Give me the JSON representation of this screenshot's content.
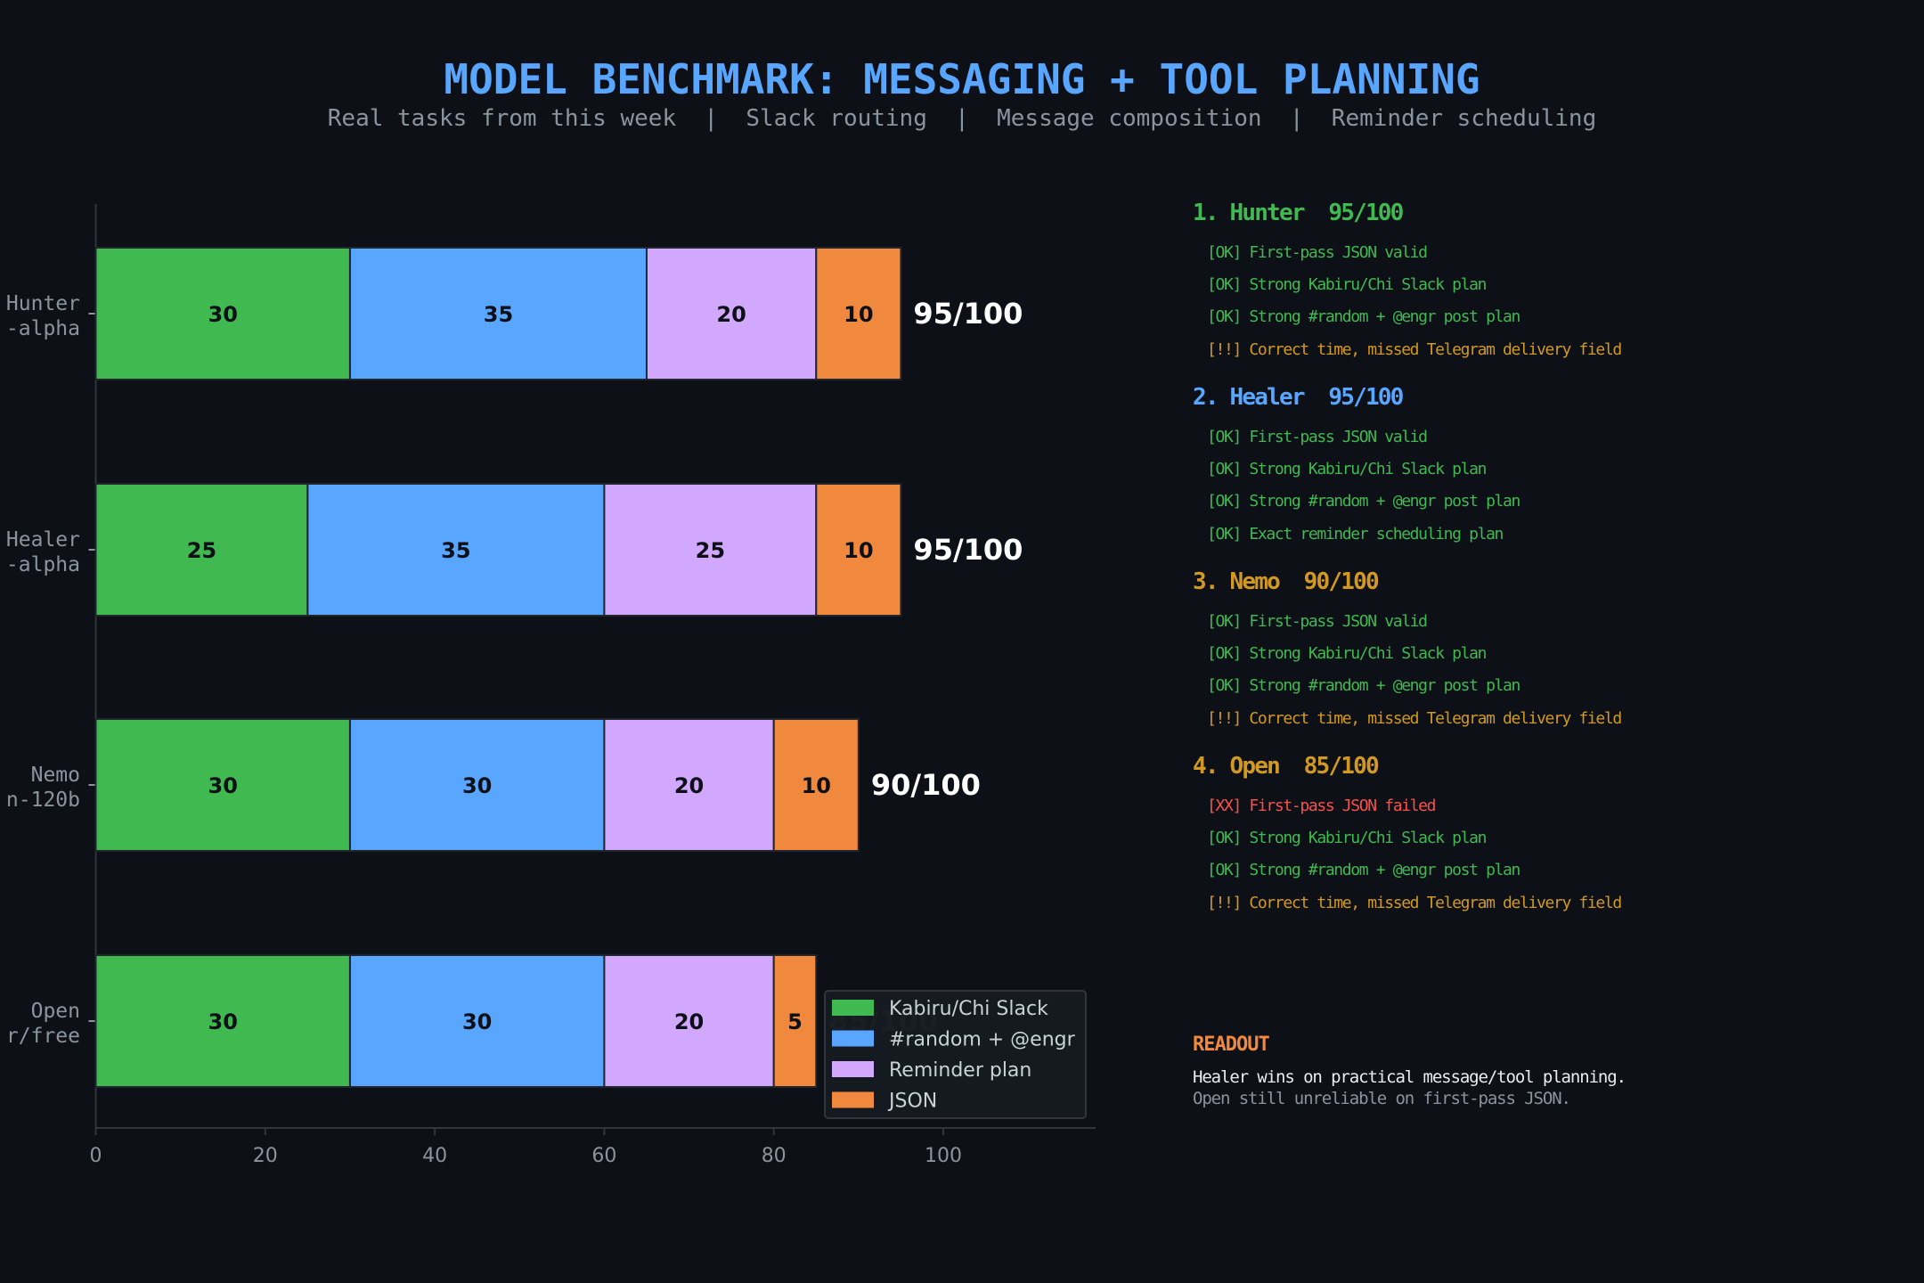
{
  "title": "MODEL BENCHMARK: MESSAGING + TOOL PLANNING",
  "subtitle": "Real tasks from this week  |  Slack routing  |  Message composition  |  Reminder scheduling",
  "colors": {
    "background": "#0d1017",
    "title": "#58a6ff",
    "ok": "#3fb950",
    "warn": "#d29922",
    "fail": "#f85149"
  },
  "chart_data": {
    "type": "bar",
    "orientation": "horizontal",
    "stacked": true,
    "categories": [
      [
        "Hunter",
        "-alpha"
      ],
      [
        "Healer",
        "-alpha"
      ],
      [
        "Nemo",
        "n-120b"
      ],
      [
        "Open",
        "r/free"
      ]
    ],
    "series": [
      {
        "name": "Kabiru/Chi Slack",
        "color": "#3fb950",
        "values": [
          30,
          25,
          30,
          30
        ]
      },
      {
        "name": "#random + @engr",
        "color": "#58a6ff",
        "values": [
          35,
          35,
          30,
          30
        ]
      },
      {
        "name": "Reminder plan",
        "color": "#d2a8ff",
        "values": [
          20,
          25,
          20,
          20
        ]
      },
      {
        "name": "JSON",
        "color": "#f0883e",
        "values": [
          10,
          10,
          10,
          5
        ]
      }
    ],
    "totals": [
      "95/100",
      "95/100",
      "90/100",
      "85/100"
    ],
    "xlim": [
      0,
      118
    ],
    "xticks": [
      0,
      20,
      40,
      60,
      80,
      100
    ],
    "grid": false,
    "legend": "bottom-right"
  },
  "panel": [
    {
      "heading": "1. Hunter  95/100",
      "color": "#3fb950",
      "items": [
        {
          "text": "[OK] First-pass JSON valid",
          "status": "ok"
        },
        {
          "text": "[OK] Strong Kabiru/Chi Slack plan",
          "status": "ok"
        },
        {
          "text": "[OK] Strong #random + @engr post plan",
          "status": "ok"
        },
        {
          "text": "[!!] Correct time, missed Telegram delivery field",
          "status": "warn"
        }
      ]
    },
    {
      "heading": "2. Healer  95/100",
      "color": "#58a6ff",
      "items": [
        {
          "text": "[OK] First-pass JSON valid",
          "status": "ok"
        },
        {
          "text": "[OK] Strong Kabiru/Chi Slack plan",
          "status": "ok"
        },
        {
          "text": "[OK] Strong #random + @engr post plan",
          "status": "ok"
        },
        {
          "text": "[OK] Exact reminder scheduling plan",
          "status": "ok"
        }
      ]
    },
    {
      "heading": "3. Nemo  90/100",
      "color": "#d29922",
      "items": [
        {
          "text": "[OK] First-pass JSON valid",
          "status": "ok"
        },
        {
          "text": "[OK] Strong Kabiru/Chi Slack plan",
          "status": "ok"
        },
        {
          "text": "[OK] Strong #random + @engr post plan",
          "status": "ok"
        },
        {
          "text": "[!!] Correct time, missed Telegram delivery field",
          "status": "warn"
        }
      ]
    },
    {
      "heading": "4. Open  85/100",
      "color": "#d29922",
      "items": [
        {
          "text": "[XX] First-pass JSON failed",
          "status": "fail"
        },
        {
          "text": "[OK] Strong Kabiru/Chi Slack plan",
          "status": "ok"
        },
        {
          "text": "[OK] Strong #random + @engr post plan",
          "status": "ok"
        },
        {
          "text": "[!!] Correct time, missed Telegram delivery field",
          "status": "warn"
        }
      ]
    }
  ],
  "readout": {
    "heading": "READOUT",
    "line1": "Healer wins on practical message/tool planning.",
    "line2": "Open still unreliable on first-pass JSON."
  }
}
